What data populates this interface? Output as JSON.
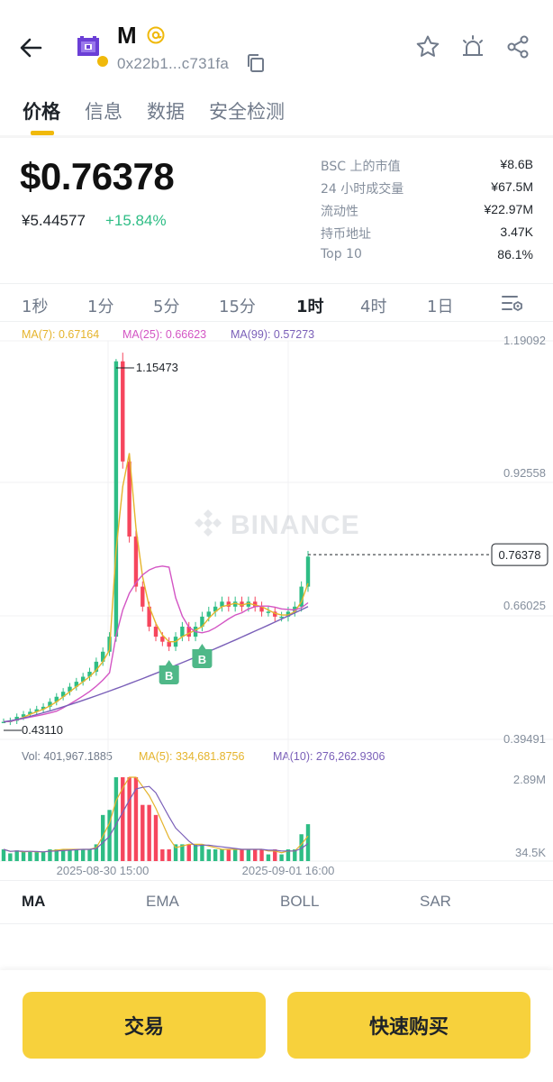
{
  "header": {
    "token_symbol": "M",
    "contract_address": "0x22b1...c731fa"
  },
  "tabs": [
    {
      "label": "价格",
      "active": true
    },
    {
      "label": "信息",
      "active": false
    },
    {
      "label": "数据",
      "active": false
    },
    {
      "label": "安全检测",
      "active": false
    }
  ],
  "price": {
    "usd": "$0.76378",
    "cny": "¥5.44577",
    "change": "+15.84%"
  },
  "stats": [
    {
      "label": "BSC 上的市值",
      "value": "¥8.6B"
    },
    {
      "label": "24 小时成交量",
      "value": "¥67.5M"
    },
    {
      "label": "流动性",
      "value": "¥22.97M"
    },
    {
      "label": "持币地址",
      "value": "3.47K"
    },
    {
      "label": "Top 10",
      "value": "86.1%"
    }
  ],
  "intervals": [
    {
      "label": "1秒",
      "active": false
    },
    {
      "label": "1分",
      "active": false
    },
    {
      "label": "5分",
      "active": false
    },
    {
      "label": "15分",
      "active": false
    },
    {
      "label": "1时",
      "active": true
    },
    {
      "label": "4时",
      "active": false
    },
    {
      "label": "1日",
      "active": false
    }
  ],
  "chart": {
    "ma_legend": {
      "ma7": "MA(7): 0.67164",
      "ma25": "MA(25): 0.66623",
      "ma99": "MA(99): 0.57273"
    },
    "vol_legend": {
      "vol": "Vol: 401,967.1885",
      "ma5": "MA(5): 334,681.8756",
      "ma10": "MA(10): 276,262.9306"
    },
    "watermark": "BINANCE",
    "trade_markers": [
      "B",
      "B"
    ]
  },
  "chart_data": {
    "type": "candlestick",
    "interval": "1h",
    "price_axis_ticks": [
      "1.19092",
      "0.92558",
      "0.66025",
      "0.39491"
    ],
    "ylim": [
      0.39491,
      1.19092
    ],
    "high_label": "1.15473",
    "low_label": "0.43110",
    "current_price": "0.76378",
    "volume_axis_ticks": [
      "2.89M",
      "34.5K"
    ],
    "time_labels": [
      "2025-08-30 15:00",
      "2025-09-01 16:00"
    ],
    "approx_close_series": [
      0.43,
      0.432,
      0.44,
      0.445,
      0.45,
      0.455,
      0.46,
      0.47,
      0.48,
      0.49,
      0.5,
      0.51,
      0.52,
      0.53,
      0.55,
      0.57,
      0.6,
      1.15,
      0.95,
      0.8,
      0.7,
      0.66,
      0.62,
      0.6,
      0.59,
      0.58,
      0.6,
      0.62,
      0.6,
      0.62,
      0.64,
      0.65,
      0.66,
      0.67,
      0.66,
      0.67,
      0.66,
      0.67,
      0.66,
      0.65,
      0.65,
      0.64,
      0.64,
      0.65,
      0.66,
      0.7,
      0.76
    ]
  },
  "indicator_tabs": [
    {
      "label": "MA",
      "active": true
    },
    {
      "label": "EMA",
      "active": false
    },
    {
      "label": "BOLL",
      "active": false
    },
    {
      "label": "SAR",
      "active": false
    }
  ],
  "actions": {
    "trade": "交易",
    "quick_buy": "快速购买"
  },
  "colors": {
    "accent": "#f0b90b",
    "up": "#2ebd85",
    "down": "#f6465d",
    "ma7": "#e5b42c",
    "ma25": "#d355c4",
    "ma99": "#7a5fb8"
  }
}
